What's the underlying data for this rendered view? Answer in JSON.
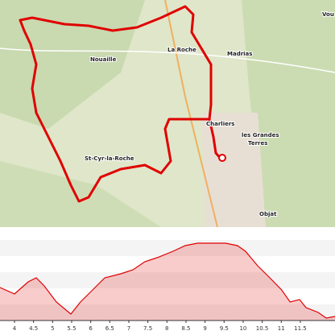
{
  "map": {
    "labels": [
      "St-Cyr-la-Roche",
      "les Grandes",
      "Terres",
      "Objat",
      "Charliers",
      "Madrias",
      "La Roche",
      "Nouaille",
      "Vou"
    ]
  },
  "chart_data": {
    "type": "area",
    "color": "#e00000",
    "x": [
      3.62,
      4.0,
      4.36,
      4.57,
      4.78,
      5.1,
      5.48,
      5.73,
      6.05,
      6.37,
      6.79,
      7.11,
      7.42,
      7.74,
      8.16,
      8.48,
      8.8,
      9.16,
      9.54,
      9.85,
      10.06,
      10.38,
      10.7,
      11.01,
      11.23,
      11.48,
      11.65,
      11.97,
      12.18,
      12.41
    ],
    "values": [
      41,
      33,
      48,
      53,
      43,
      23,
      8,
      23,
      38,
      53,
      58,
      63,
      73,
      78,
      86,
      93,
      96,
      96,
      96,
      93,
      86,
      68,
      53,
      38,
      23,
      26,
      16,
      10,
      3,
      5
    ],
    "xlim": [
      3.62,
      12.41
    ],
    "ylim": [
      0,
      100
    ],
    "xticks": [
      4,
      4.5,
      5,
      5.5,
      6,
      6.5,
      7,
      7.5,
      8,
      8.5,
      9,
      9.5,
      10,
      10.5,
      11,
      11.5
    ]
  }
}
